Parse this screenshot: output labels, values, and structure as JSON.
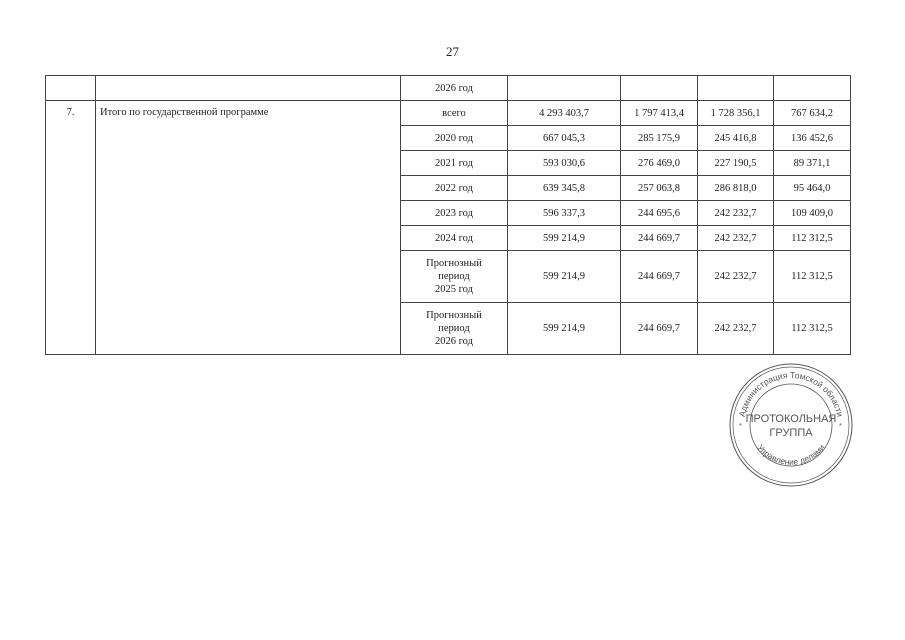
{
  "page_number": "27",
  "table": {
    "top_row": {
      "period": "2026 год"
    },
    "item": {
      "number": "7.",
      "name": "Итого по государственной программе",
      "rows": [
        {
          "period": "всего",
          "values": [
            "4 293 403,7",
            "1 797 413,4",
            "1 728 356,1",
            "767 634,2"
          ]
        },
        {
          "period": "2020 год",
          "values": [
            "667 045,3",
            "285 175,9",
            "245 416,8",
            "136 452,6"
          ]
        },
        {
          "period": "2021 год",
          "values": [
            "593 030,6",
            "276 469,0",
            "227 190,5",
            "89 371,1"
          ]
        },
        {
          "period": "2022 год",
          "values": [
            "639 345,8",
            "257 063,8",
            "286 818,0",
            "95 464,0"
          ]
        },
        {
          "period": "2023 год",
          "values": [
            "596 337,3",
            "244 695,6",
            "242 232,7",
            "109 409,0"
          ]
        },
        {
          "period": "2024 год",
          "values": [
            "599 214,9",
            "244 669,7",
            "242 232,7",
            "112 312,5"
          ]
        },
        {
          "period": "Прогнозный период 2025 год",
          "values": [
            "599 214,9",
            "244 669,7",
            "242 232,7",
            "112 312,5"
          ]
        },
        {
          "period": "Прогнозный период 2026 год",
          "values": [
            "599 214,9",
            "244 669,7",
            "242 232,7",
            "112 312,5"
          ]
        }
      ]
    }
  },
  "stamp": {
    "outer_top": "Администрация Томской области",
    "outer_bottom": "Управление делами",
    "center_line1": "ПРОТОКОЛЬНАЯ",
    "center_line2": "ГРУППА"
  }
}
